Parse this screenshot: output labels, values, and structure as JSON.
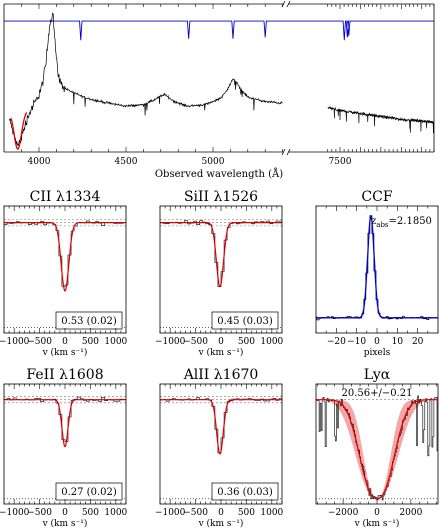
{
  "colors": {
    "spectrum": "#000000",
    "model": "#dd0000",
    "telluric": "#0000cc",
    "ccf_fit": "#0000cc",
    "band": "#f2a6a6",
    "dashed_ref": "#777777"
  },
  "chart_data": [
    {
      "id": "spectrum",
      "type": "line",
      "title": "",
      "xlabel": "Observed wavelength (Å)",
      "ylabel": "",
      "broken_axis": true,
      "segments": [
        {
          "xlim": [
            3830,
            4950
          ],
          "xticks": [
            {
              "v": 4000,
              "t": "4000"
            },
            {
              "v": 4500,
              "t": "4500"
            }
          ],
          "minor_step": 100
        },
        {
          "xlim": [
            4950,
            5400
          ],
          "xticks": [
            {
              "v": 5000,
              "t": "5000"
            }
          ],
          "minor_step": 100
        },
        {
          "xlim": [
            7200,
            9800
          ],
          "xticks": [
            {
              "v": 7500,
              "t": "7500"
            }
          ],
          "minor_step": 100
        }
      ],
      "ylim": [
        0,
        1
      ],
      "telluric_level": 0.885,
      "telluric_lines": [
        {
          "x": 4240,
          "depth": 0.13
        },
        {
          "x": 4860,
          "depth": 0.12
        },
        {
          "x": 5115,
          "depth": 0.12
        },
        {
          "x": 5300,
          "depth": 0.11
        },
        {
          "x": 7605,
          "depth": 0.13
        },
        {
          "x": 7680,
          "depth": 0.11
        },
        {
          "x": 7715,
          "depth": 0.1
        }
      ],
      "continuum_knots": [
        [
          3830,
          0.22
        ],
        [
          3860,
          0.1
        ],
        [
          3880,
          0.04
        ],
        [
          3900,
          0.1
        ],
        [
          3930,
          0.22
        ],
        [
          3960,
          0.3
        ],
        [
          3990,
          0.36
        ],
        [
          4020,
          0.46
        ],
        [
          4040,
          0.6
        ],
        [
          4060,
          0.85
        ],
        [
          4080,
          0.95
        ],
        [
          4100,
          0.62
        ],
        [
          4120,
          0.47
        ],
        [
          4150,
          0.43
        ],
        [
          4200,
          0.4
        ],
        [
          4260,
          0.37
        ],
        [
          4320,
          0.35
        ],
        [
          4400,
          0.33
        ],
        [
          4500,
          0.31
        ],
        [
          4600,
          0.32
        ],
        [
          4660,
          0.35
        ],
        [
          4720,
          0.39
        ],
        [
          4780,
          0.34
        ],
        [
          4850,
          0.31
        ],
        [
          4950,
          0.32
        ],
        [
          5000,
          0.34
        ],
        [
          5050,
          0.37
        ],
        [
          5080,
          0.42
        ],
        [
          5120,
          0.5
        ],
        [
          5150,
          0.44
        ],
        [
          5200,
          0.37
        ],
        [
          5300,
          0.34
        ],
        [
          5400,
          0.33
        ],
        [
          7200,
          0.3
        ],
        [
          7500,
          0.28
        ],
        [
          8000,
          0.26
        ],
        [
          8500,
          0.24
        ],
        [
          9000,
          0.22
        ],
        [
          9500,
          0.21
        ],
        [
          9800,
          0.2
        ]
      ],
      "dla_model": {
        "center": 3878,
        "halfwidth": 30,
        "x_range": [
          3840,
          3930
        ]
      }
    },
    {
      "id": "cii",
      "type": "line",
      "title": "CII λ1334",
      "xlabel": "v (km s⁻¹)",
      "xlim": [
        -1200,
        1200
      ],
      "xticks": [
        {
          "v": -1000,
          "t": "−1000"
        },
        {
          "v": -500,
          "t": "−500"
        },
        {
          "v": 0,
          "t": "0"
        },
        {
          "v": 500,
          "t": "500"
        },
        {
          "v": 1000,
          "t": "1000"
        }
      ],
      "ylim": [
        0,
        1.15
      ],
      "dashed_levels": [
        1.03,
        1.0,
        0.97
      ],
      "zero_level": 0.05,
      "line_center": 0,
      "line_depth": 0.62,
      "line_width": 75,
      "label": "0.53 (0.02)"
    },
    {
      "id": "siii",
      "type": "line",
      "title": "SiII λ1526",
      "xlabel": "v (km s⁻¹)",
      "xlim": [
        -1200,
        1200
      ],
      "xticks": [
        {
          "v": -1000,
          "t": "−1000"
        },
        {
          "v": -500,
          "t": "−500"
        },
        {
          "v": 0,
          "t": "0"
        },
        {
          "v": 500,
          "t": "500"
        },
        {
          "v": 1000,
          "t": "1000"
        }
      ],
      "ylim": [
        0,
        1.15
      ],
      "dashed_levels": [
        1.03,
        1.0,
        0.97
      ],
      "zero_level": 0.05,
      "line_center": -20,
      "line_depth": 0.58,
      "line_width": 70,
      "label": "0.45 (0.03)"
    },
    {
      "id": "ccf",
      "type": "line",
      "title": "CCF",
      "xlabel": "pixels",
      "xlim": [
        -30,
        30
      ],
      "xticks": [
        {
          "v": -20,
          "t": "−20"
        },
        {
          "v": -10,
          "t": "−10"
        },
        {
          "v": 0,
          "t": "0"
        },
        {
          "v": 10,
          "t": "10"
        },
        {
          "v": 20,
          "t": "20"
        }
      ],
      "ylim": [
        0,
        1
      ],
      "peak_center": -3,
      "peak_width": 1.6,
      "peak_height": 0.8,
      "baseline": 0.12,
      "label": "2.1850",
      "label_prefix": "z",
      "label_sub": "abs"
    },
    {
      "id": "feii",
      "type": "line",
      "title": "FeII λ1608",
      "xlabel": "v (km s⁻¹)",
      "xlim": [
        -1200,
        1200
      ],
      "xticks": [
        {
          "v": -1000,
          "t": "−1000"
        },
        {
          "v": -500,
          "t": "−500"
        },
        {
          "v": 0,
          "t": "0"
        },
        {
          "v": 500,
          "t": "500"
        },
        {
          "v": 1000,
          "t": "1000"
        }
      ],
      "ylim": [
        0,
        1.15
      ],
      "dashed_levels": [
        1.03,
        1.0,
        0.97
      ],
      "zero_level": 0.05,
      "line_center": 0,
      "line_depth": 0.45,
      "line_width": 60,
      "label": "0.27 (0.02)"
    },
    {
      "id": "aliii",
      "type": "line",
      "title": "AlII λ1670",
      "xlabel": "v (km s⁻¹)",
      "xlim": [
        -1200,
        1200
      ],
      "xticks": [
        {
          "v": -1000,
          "t": "−1000"
        },
        {
          "v": -500,
          "t": "−500"
        },
        {
          "v": 0,
          "t": "0"
        },
        {
          "v": 500,
          "t": "500"
        },
        {
          "v": 1000,
          "t": "1000"
        }
      ],
      "ylim": [
        0,
        1.15
      ],
      "dashed_levels": [
        1.03,
        1.0,
        0.97
      ],
      "zero_level": 0.05,
      "line_center": -20,
      "line_depth": 0.52,
      "line_width": 65,
      "label": "0.36 (0.03)"
    },
    {
      "id": "lya",
      "type": "line",
      "title": "Lyα",
      "xlabel": "v (km s⁻¹)",
      "xlim": [
        -3600,
        3600
      ],
      "xticks": [
        {
          "v": -2000,
          "t": "−2000"
        },
        {
          "v": 0,
          "t": "0"
        },
        {
          "v": 2000,
          "t": "2000"
        }
      ],
      "ylim": [
        0,
        1.15
      ],
      "dashed_levels": [
        1.0
      ],
      "zero_level": 0.05,
      "damping_width": 1300,
      "band_fraction": 0.22,
      "label": "20.56+/−0.21"
    }
  ]
}
